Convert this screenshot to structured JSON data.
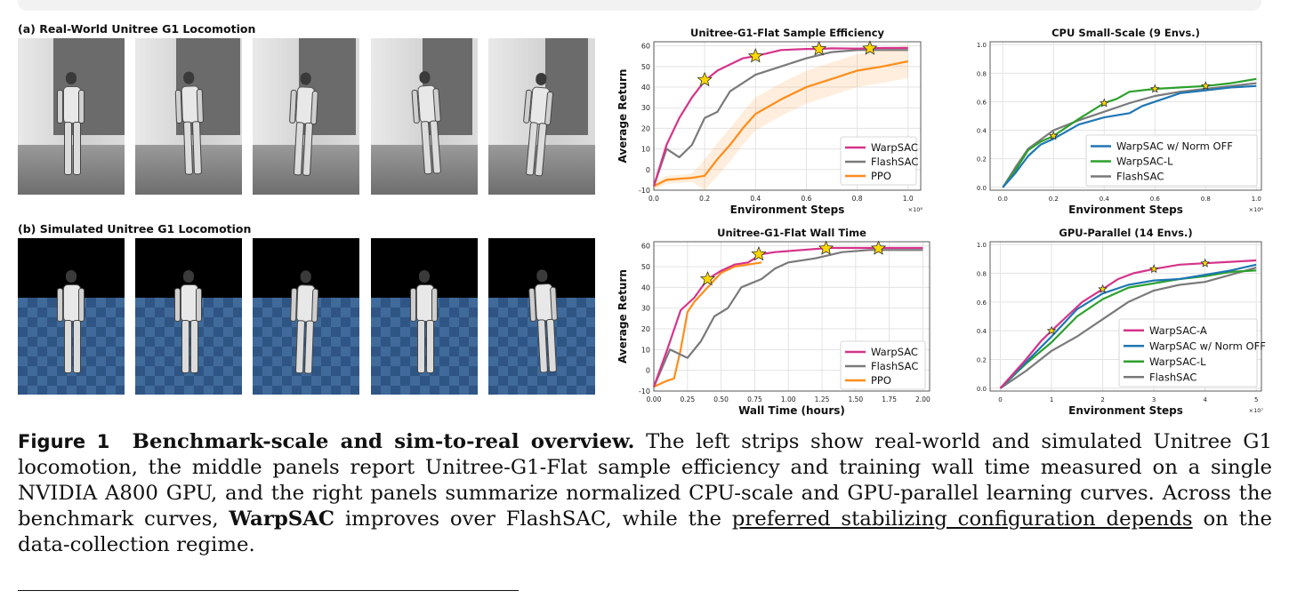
{
  "strips": {
    "real_label": "(a) Real-World Unitree G1 Locomotion",
    "sim_label": "(b) Simulated Unitree G1 Locomotion"
  },
  "caption": {
    "figure_label": "Figure 1",
    "bold_title": "Benchmark-scale and sim-to-real overview.",
    "text1": "The left strips show real-world and simulated Unitree G1 locomotion, the middle panels report Unitree-G1-Flat sample efficiency and training wall time measured on a single NVIDIA A800 GPU, and the right panels summarize normalized CPU-scale and GPU-parallel learning curves. Across the benchmark curves,",
    "bold_method": "WarpSAC",
    "text2": "improves over FlashSAC, while the",
    "underlined": "preferred stabilizing configuration depends",
    "text3": "on the data-collection regime."
  },
  "colors": {
    "WarpSAC": "#d6338a",
    "FlashSAC": "#7a7a7a",
    "PPO": "#ff8c1a",
    "WarpSAC-A": "#d6338a",
    "WarpSAC w/ Norm OFF": "#1f77b4",
    "WarpSAC-L": "#2ca02c",
    "star": "#ffd700"
  },
  "chart_data": [
    {
      "type": "line",
      "title": "Unitree-G1-Flat Sample Efficiency",
      "xlabel": "Environment Steps",
      "ylabel": "Average Return",
      "x_multiplier": "×10⁸",
      "xlim": [
        0,
        1.05
      ],
      "ylim": [
        -10,
        62
      ],
      "xticks": [
        "0.0",
        "0.2",
        "0.4",
        "0.6",
        "0.8",
        "1.0"
      ],
      "yticks": [
        "-10",
        "0",
        "10",
        "20",
        "30",
        "40",
        "50",
        "60"
      ],
      "legend_position": "lower-right",
      "series": [
        {
          "name": "WarpSAC",
          "x": [
            0,
            0.05,
            0.1,
            0.15,
            0.2,
            0.25,
            0.3,
            0.35,
            0.4,
            0.5,
            0.6,
            0.65,
            0.7,
            0.8,
            0.85,
            0.9,
            1.0
          ],
          "y": [
            -8,
            12,
            25,
            35,
            43,
            48,
            51,
            54,
            55,
            58,
            58.5,
            58.5,
            58.8,
            58.7,
            58.8,
            59,
            59
          ],
          "stars": [
            [
              0.2,
              43.5
            ],
            [
              0.4,
              55
            ],
            [
              0.65,
              58.5
            ],
            [
              0.85,
              58.8
            ]
          ]
        },
        {
          "name": "FlashSAC",
          "x": [
            0,
            0.05,
            0.1,
            0.15,
            0.2,
            0.25,
            0.3,
            0.35,
            0.4,
            0.5,
            0.6,
            0.7,
            0.8,
            0.9,
            1.0
          ],
          "y": [
            -8,
            10,
            6,
            12,
            25,
            28,
            38,
            42,
            46,
            50,
            54,
            57,
            58,
            58,
            58
          ]
        },
        {
          "name": "PPO",
          "x": [
            0,
            0.05,
            0.1,
            0.15,
            0.2,
            0.25,
            0.3,
            0.35,
            0.4,
            0.5,
            0.6,
            0.7,
            0.8,
            0.9,
            1.0
          ],
          "y": [
            -8,
            -5,
            -4.5,
            -4,
            -3,
            5,
            12,
            20,
            27,
            34,
            40,
            44,
            48,
            50,
            52.5
          ],
          "band": true
        }
      ]
    },
    {
      "type": "line",
      "title": "Unitree-G1-Flat Wall Time",
      "xlabel": "Wall Time (hours)",
      "ylabel": "Average Return",
      "xlim": [
        0,
        2.05
      ],
      "ylim": [
        -10,
        62
      ],
      "xticks": [
        "0.00",
        "0.25",
        "0.50",
        "0.75",
        "1.00",
        "1.25",
        "1.50",
        "1.75",
        "2.00"
      ],
      "yticks": [
        "-10",
        "0",
        "10",
        "20",
        "30",
        "40",
        "50",
        "60"
      ],
      "legend_position": "lower-right",
      "series": [
        {
          "name": "WarpSAC",
          "x": [
            0,
            0.1,
            0.2,
            0.3,
            0.4,
            0.5,
            0.6,
            0.7,
            0.8,
            0.9,
            1.0,
            1.1,
            1.3,
            1.5,
            1.7,
            1.9,
            2.0
          ],
          "y": [
            -8,
            10,
            29,
            35,
            44,
            48,
            51,
            52,
            56,
            57,
            57.5,
            58,
            59,
            59,
            59,
            59,
            59
          ],
          "stars": [
            [
              0.4,
              44
            ],
            [
              0.78,
              56
            ],
            [
              1.28,
              58.8
            ],
            [
              1.67,
              58.8
            ]
          ]
        },
        {
          "name": "FlashSAC",
          "x": [
            0,
            0.12,
            0.25,
            0.35,
            0.45,
            0.55,
            0.65,
            0.8,
            0.9,
            1.0,
            1.2,
            1.4,
            1.6,
            1.8,
            2.0
          ],
          "y": [
            -8,
            10,
            6,
            14,
            26,
            30,
            40,
            44,
            49,
            52,
            54,
            57,
            58,
            58,
            58
          ]
        },
        {
          "name": "PPO",
          "x": [
            0,
            0.1,
            0.15,
            0.2,
            0.25,
            0.3,
            0.4,
            0.5,
            0.6,
            0.7,
            0.8
          ],
          "y": [
            -8,
            -5,
            -4,
            10,
            28,
            33,
            40,
            47,
            50,
            51,
            52
          ]
        }
      ]
    },
    {
      "type": "line",
      "title": "CPU Small-Scale (9 Envs.)",
      "xlabel": "Environment Steps",
      "x_multiplier": "×10⁶",
      "xlim": [
        -0.05,
        1.02
      ],
      "ylim": [
        -0.02,
        1.02
      ],
      "xticks": [
        "0.0",
        "0.2",
        "0.4",
        "0.6",
        "0.8",
        "1.0"
      ],
      "yticks": [
        "0.0",
        "0.2",
        "0.4",
        "0.6",
        "0.8",
        "1.0"
      ],
      "legend_position": "lower-right",
      "series": [
        {
          "name": "WarpSAC w/ Norm OFF",
          "x": [
            0,
            0.05,
            0.1,
            0.15,
            0.2,
            0.3,
            0.4,
            0.5,
            0.55,
            0.6,
            0.7,
            0.8,
            0.9,
            1.0
          ],
          "y": [
            0,
            0.1,
            0.22,
            0.3,
            0.34,
            0.44,
            0.49,
            0.52,
            0.57,
            0.6,
            0.66,
            0.68,
            0.7,
            0.71
          ]
        },
        {
          "name": "WarpSAC-L",
          "x": [
            0,
            0.05,
            0.1,
            0.15,
            0.2,
            0.3,
            0.4,
            0.45,
            0.5,
            0.6,
            0.7,
            0.8,
            0.9,
            1.0
          ],
          "y": [
            0,
            0.12,
            0.26,
            0.32,
            0.36,
            0.48,
            0.59,
            0.62,
            0.67,
            0.69,
            0.7,
            0.71,
            0.73,
            0.76
          ],
          "stars": [
            [
              0.2,
              0.36
            ],
            [
              0.4,
              0.59
            ],
            [
              0.6,
              0.69
            ],
            [
              0.8,
              0.71
            ]
          ]
        },
        {
          "name": "FlashSAC",
          "x": [
            0,
            0.05,
            0.1,
            0.2,
            0.3,
            0.4,
            0.5,
            0.6,
            0.7,
            0.8,
            0.9,
            1.0
          ],
          "y": [
            0,
            0.14,
            0.27,
            0.4,
            0.47,
            0.53,
            0.59,
            0.64,
            0.67,
            0.69,
            0.71,
            0.73
          ]
        }
      ]
    },
    {
      "type": "line",
      "title": "GPU-Parallel (14 Envs.)",
      "xlabel": "Environment Steps",
      "x_multiplier": "×10⁷",
      "xlim": [
        -0.2,
        5.1
      ],
      "ylim": [
        -0.02,
        1.02
      ],
      "xticks": [
        "0",
        "1",
        "2",
        "3",
        "4",
        "5"
      ],
      "yticks": [
        "0.0",
        "0.2",
        "0.4",
        "0.6",
        "0.8",
        "1.0"
      ],
      "legend_position": "lower-right",
      "series": [
        {
          "name": "WarpSAC-A",
          "x": [
            0,
            0.5,
            0.8,
            1.0,
            1.3,
            1.6,
            2.0,
            2.3,
            2.6,
            3.0,
            3.5,
            4.0,
            4.5,
            5.0
          ],
          "y": [
            0,
            0.2,
            0.33,
            0.4,
            0.5,
            0.6,
            0.69,
            0.76,
            0.8,
            0.83,
            0.86,
            0.87,
            0.88,
            0.89
          ],
          "stars": [
            [
              1,
              0.4
            ],
            [
              2,
              0.69
            ],
            [
              3,
              0.83
            ],
            [
              4,
              0.87
            ]
          ]
        },
        {
          "name": "WarpSAC w/ Norm OFF",
          "x": [
            0,
            0.5,
            1.0,
            1.5,
            2.0,
            2.5,
            3.0,
            3.5,
            4.0,
            4.5,
            5.0
          ],
          "y": [
            0,
            0.18,
            0.36,
            0.55,
            0.66,
            0.72,
            0.75,
            0.76,
            0.79,
            0.82,
            0.86
          ]
        },
        {
          "name": "WarpSAC-L",
          "x": [
            0,
            0.5,
            1.0,
            1.5,
            2.0,
            2.5,
            3.0,
            3.5,
            4.0,
            4.5,
            5.0
          ],
          "y": [
            0,
            0.17,
            0.32,
            0.5,
            0.62,
            0.7,
            0.73,
            0.76,
            0.78,
            0.81,
            0.82
          ]
        },
        {
          "name": "FlashSAC",
          "x": [
            0,
            0.5,
            1.0,
            1.5,
            2.0,
            2.5,
            3.0,
            3.5,
            4.0,
            4.5,
            5.0
          ],
          "y": [
            0,
            0.12,
            0.26,
            0.36,
            0.48,
            0.6,
            0.68,
            0.72,
            0.74,
            0.79,
            0.84
          ]
        }
      ]
    }
  ]
}
